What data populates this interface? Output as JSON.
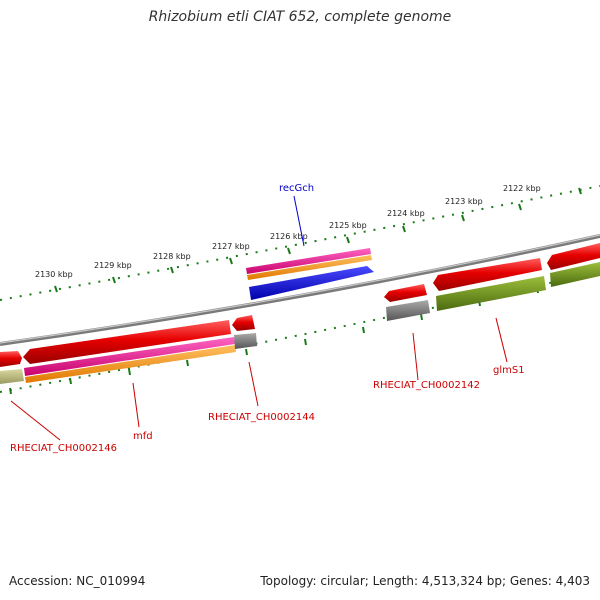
{
  "title": "Rhizobium etli CIAT 652, complete genome",
  "footer": {
    "accession": "Accession: NC_010994",
    "summary": "Topology: circular; Length: 4,513,324 bp; Genes: 4,403"
  },
  "colors": {
    "backbone": "#8c8c8c",
    "tick": "#1a7a1a",
    "gene_forward": "#e60000",
    "cds": "#e6007e",
    "orf": "#ff8c00",
    "rna": "#0000ee",
    "pseudo": "#777777",
    "olive": "#6b8e23",
    "label": "#cc0000",
    "label_blue": "#0000cc"
  },
  "scale": {
    "ticks": [
      "2122 kbp",
      "2123 kbp",
      "2124 kbp",
      "2125 kbp",
      "2126 kbp",
      "2127 kbp",
      "2128 kbp",
      "2129 kbp",
      "2130 kbp"
    ]
  },
  "labels": {
    "recGch": "recGch",
    "rheciat_ch0002146": "RHECIAT_CH0002146",
    "mfd": "mfd",
    "rheciat_ch0002144": "RHECIAT_CH0002144",
    "rheciat_ch0002142": "RHECIAT_CH0002142",
    "glmS1": "glmS1"
  }
}
